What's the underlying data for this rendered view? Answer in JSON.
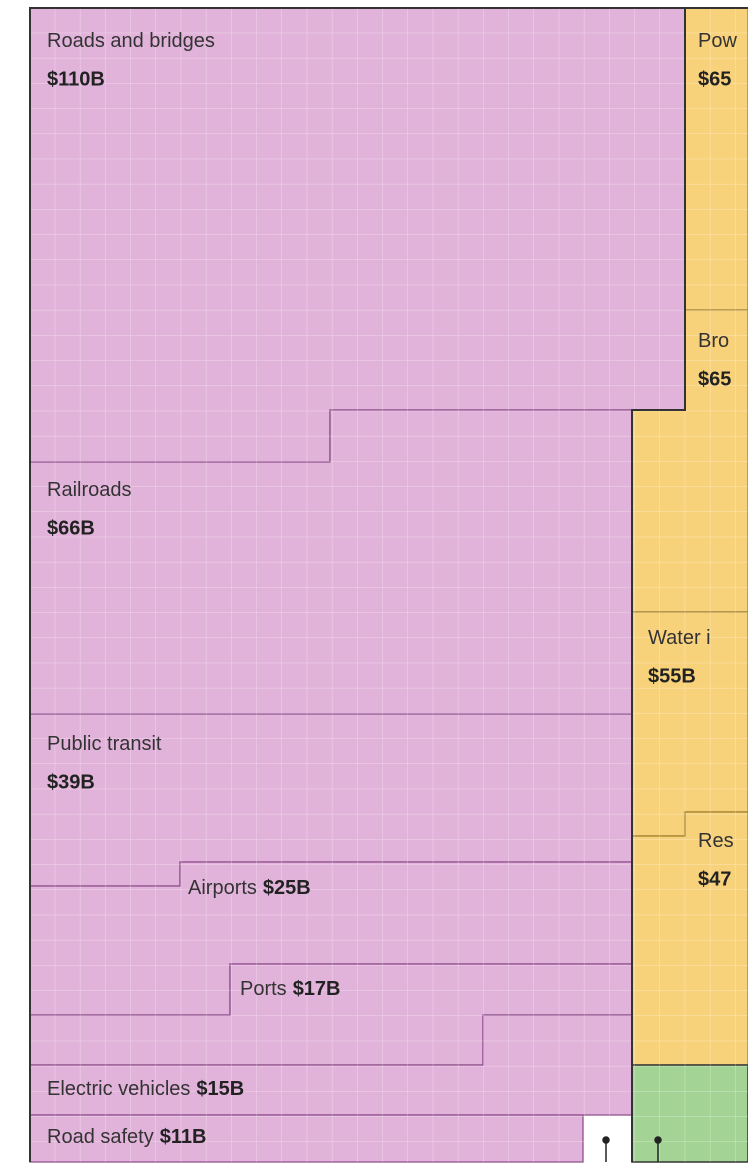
{
  "chart_data": {
    "type": "treemap",
    "categories": [
      "Roads and bridges",
      "Railroads",
      "Public transit",
      "Airports",
      "Ports",
      "Electric vehicles",
      "Road safety",
      "Pow",
      "Bro",
      "Water i",
      "Res"
    ],
    "values": [
      110,
      66,
      39,
      25,
      17,
      15,
      11,
      65,
      65,
      55,
      47
    ],
    "value_labels": [
      "$110B",
      "$66B",
      "$39B",
      "$25B",
      "$17B",
      "$15B",
      "$11B",
      "$65",
      "$65",
      "$55B",
      "$47"
    ],
    "colors": [
      "#e2b3da",
      "#e2b3da",
      "#e2b3da",
      "#e2b3da",
      "#e2b3da",
      "#e2b3da",
      "#e2b3da",
      "#f8d27a",
      "#f8d27a",
      "#f8d27a",
      "#f8d27a"
    ]
  }
}
